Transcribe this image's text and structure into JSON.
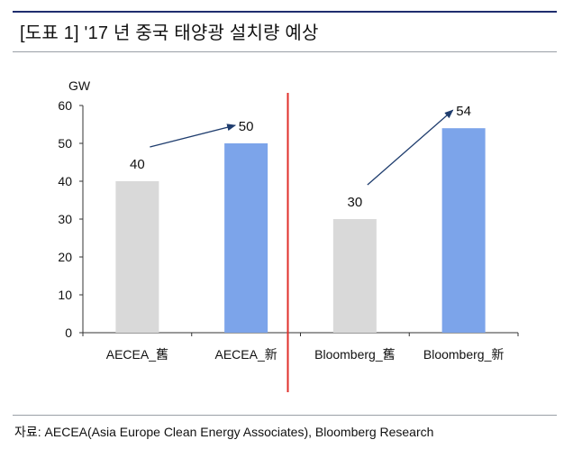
{
  "header": {
    "title": "[도표 1] '17 년 중국 태양광 설치량 예상"
  },
  "source": {
    "text": "자료: AECEA(Asia Europe Clean Energy Associates), Bloomberg Research"
  },
  "chart_data": {
    "type": "bar",
    "categories": [
      "AECEA_舊",
      "AECEA_新",
      "Bloomberg_舊",
      "Bloomberg_新"
    ],
    "values": [
      40,
      50,
      30,
      54
    ],
    "bar_colors": [
      "#d9d9d9",
      "#7ca4ea",
      "#d9d9d9",
      "#7ca4ea"
    ],
    "unit_label": "GW",
    "ylim": [
      0,
      60
    ],
    "yticks": [
      0,
      10,
      20,
      30,
      40,
      50,
      60
    ],
    "grid": false,
    "divider_color": "#e0302b",
    "arrow_color": "#1f3d6e",
    "arrows": [
      {
        "from": "AECEA_舊",
        "to": "AECEA_新"
      },
      {
        "from": "Bloomberg_舊",
        "to": "Bloomberg_新"
      }
    ]
  }
}
